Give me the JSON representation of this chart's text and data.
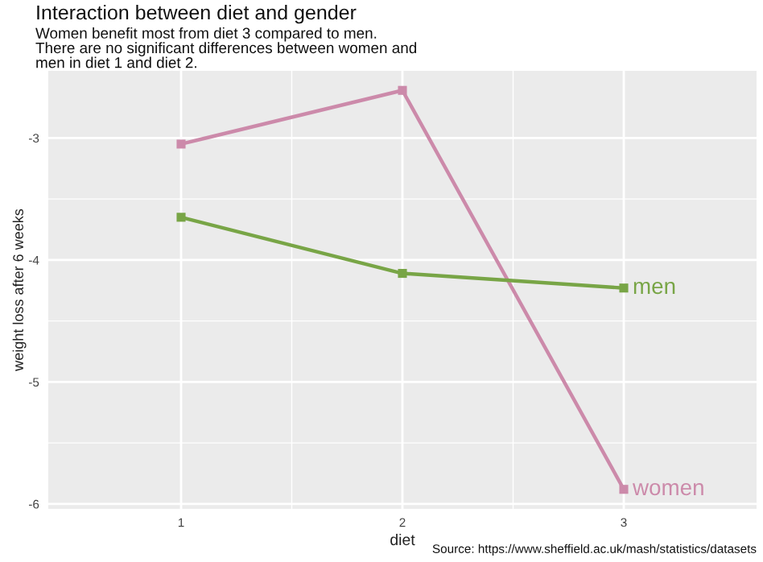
{
  "chart_data": {
    "type": "line",
    "title": "Interaction between diet and gender",
    "subtitle": "Women benefit most from diet 3 compared to men.\nThere are no significant differences between women and\nmen in diet 1 and diet 2.",
    "xlabel": "diet",
    "ylabel": "weight loss after 6 weeks",
    "x": [
      1,
      2,
      3
    ],
    "series": [
      {
        "name": "women",
        "color": "#cc8aaa",
        "values": [
          -3.05,
          -2.61,
          -5.88
        ]
      },
      {
        "name": "men",
        "color": "#78a546",
        "values": [
          -3.65,
          -4.11,
          -4.23
        ]
      }
    ],
    "xlim": [
      0.4,
      3.6
    ],
    "xticks": [
      1,
      2,
      3
    ],
    "ylim": [
      -6.04,
      -2.45
    ],
    "yticks": [
      -6,
      -5,
      -4,
      -3
    ],
    "grid": true,
    "marker": "square",
    "line_style": "solid",
    "legend": false,
    "annotations": [
      "Source: https://www.sheffield.ac.uk/mash/statistics/datasets"
    ]
  }
}
